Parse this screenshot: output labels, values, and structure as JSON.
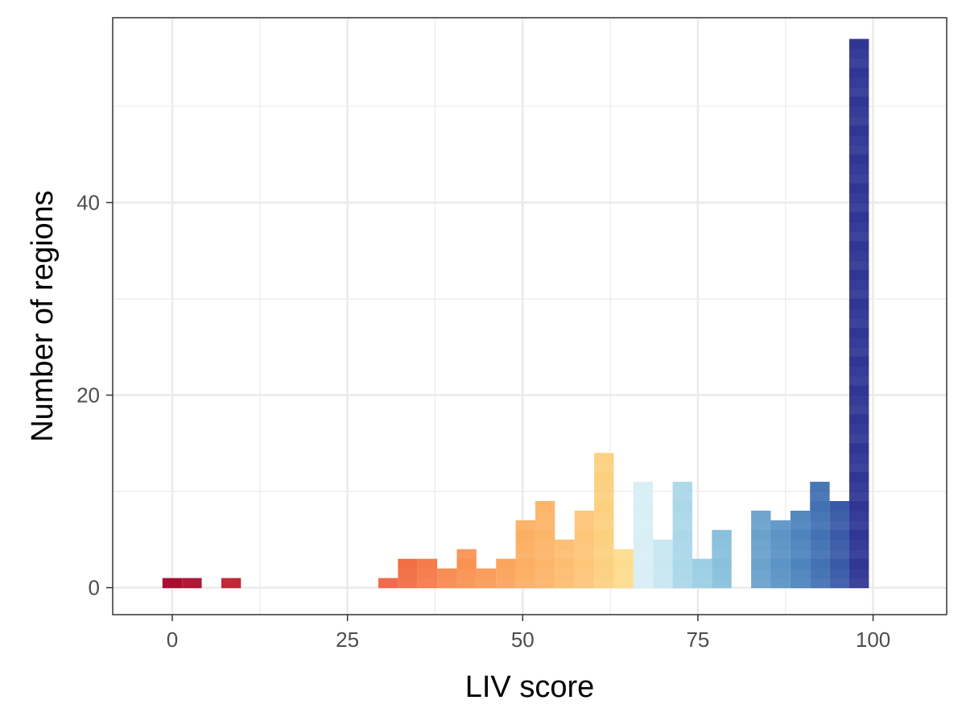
{
  "chart_data": {
    "type": "bar",
    "subtype": "histogram",
    "title": "",
    "xlabel": "LIV score",
    "ylabel": "Number of regions",
    "xlim": [
      -8.5,
      110.5
    ],
    "ylim": [
      -2.8,
      59.2
    ],
    "x_ticks": [
      0,
      25,
      50,
      75,
      100
    ],
    "y_ticks": [
      0,
      20,
      40
    ],
    "bin_width": 2.8,
    "grid": true,
    "legend": "none",
    "series": [
      {
        "bins": [
          {
            "x": 0.0,
            "count": 1,
            "color": "#a50026"
          },
          {
            "x": 2.8,
            "count": 1,
            "color": "#ab0b2a"
          },
          {
            "x": 8.4,
            "count": 1,
            "color": "#bc1d2b"
          },
          {
            "x": 30.8,
            "count": 1,
            "color": "#ee6443"
          },
          {
            "x": 33.6,
            "count": 3,
            "color": "#f26e43"
          },
          {
            "x": 36.4,
            "count": 3,
            "color": "#f57b4a"
          },
          {
            "x": 39.2,
            "count": 2,
            "color": "#f78a4f"
          },
          {
            "x": 42.0,
            "count": 4,
            "color": "#f99353"
          },
          {
            "x": 44.8,
            "count": 2,
            "color": "#fa9a56"
          },
          {
            "x": 47.6,
            "count": 3,
            "color": "#fba45c"
          },
          {
            "x": 50.4,
            "count": 7,
            "color": "#fcae62"
          },
          {
            "x": 53.2,
            "count": 9,
            "color": "#fdb56a"
          },
          {
            "x": 56.0,
            "count": 5,
            "color": "#fdbd71"
          },
          {
            "x": 58.8,
            "count": 8,
            "color": "#fdc679"
          },
          {
            "x": 61.6,
            "count": 14,
            "color": "#fdd07f"
          },
          {
            "x": 64.4,
            "count": 4,
            "color": "#fddc8d"
          },
          {
            "x": 67.2,
            "count": 11,
            "color": "#d9eef5"
          },
          {
            "x": 70.0,
            "count": 5,
            "color": "#c8e7f1"
          },
          {
            "x": 72.8,
            "count": 11,
            "color": "#abd8e9"
          },
          {
            "x": 75.6,
            "count": 3,
            "color": "#9ccee4"
          },
          {
            "x": 78.4,
            "count": 6,
            "color": "#89c0dc"
          },
          {
            "x": 84.0,
            "count": 8,
            "color": "#6aa2cc"
          },
          {
            "x": 86.8,
            "count": 7,
            "color": "#5b94c5"
          },
          {
            "x": 89.6,
            "count": 8,
            "color": "#4e84bd"
          },
          {
            "x": 92.4,
            "count": 11,
            "color": "#4272b3"
          },
          {
            "x": 95.2,
            "count": 9,
            "color": "#3a5aa8"
          },
          {
            "x": 98.0,
            "count": 57,
            "color": "#313695"
          }
        ]
      }
    ],
    "colors": {
      "panel_border": "#333333",
      "grid": "#ebebeb",
      "tick_text": "#4d4d4d"
    }
  }
}
